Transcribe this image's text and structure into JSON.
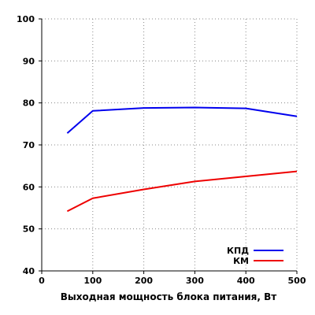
{
  "chart_data": {
    "type": "line",
    "title": "",
    "xlabel": "Выходная мощность блока питания, Вт",
    "ylabel": "",
    "xlim": [
      0,
      500
    ],
    "ylim": [
      40,
      100
    ],
    "x_ticks": [
      0,
      100,
      200,
      300,
      400,
      500
    ],
    "y_ticks": [
      40,
      50,
      60,
      70,
      80,
      90,
      100
    ],
    "grid": true,
    "legend_position": "bottom-right",
    "series": [
      {
        "name": "КПД",
        "color": "#0000ee",
        "x": [
          50,
          100,
          200,
          300,
          400,
          500
        ],
        "values": [
          72.8,
          78.1,
          78.8,
          78.9,
          78.7,
          76.8
        ]
      },
      {
        "name": "КМ",
        "color": "#ee0000",
        "x": [
          50,
          100,
          200,
          300,
          400,
          500
        ],
        "values": [
          54.2,
          57.3,
          59.4,
          61.3,
          62.5,
          63.7
        ]
      }
    ]
  }
}
